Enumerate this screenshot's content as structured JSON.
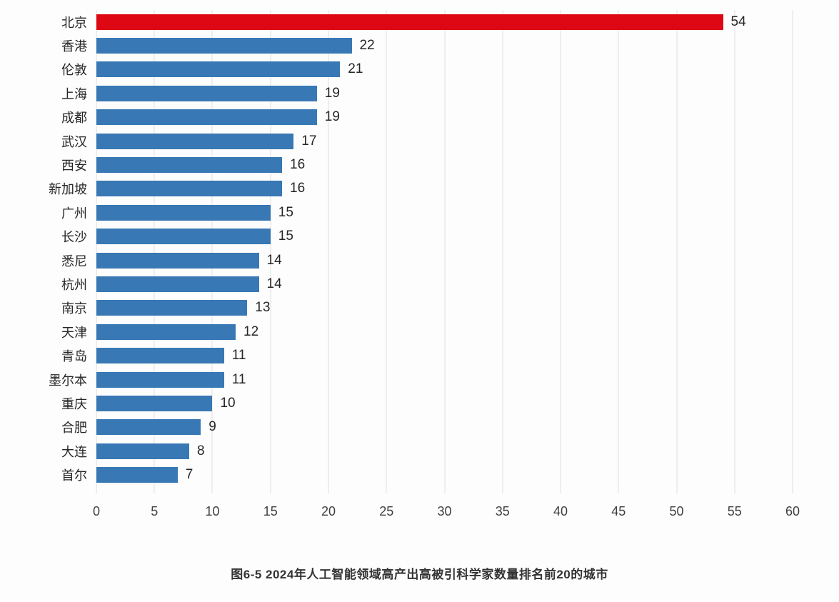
{
  "chart_data": {
    "type": "bar",
    "orientation": "horizontal",
    "caption": "图6-5 2024年人工智能领域高产出高被引科学家数量排名前20的城市",
    "categories": [
      "北京",
      "香港",
      "伦敦",
      "上海",
      "成都",
      "武汉",
      "西安",
      "新加坡",
      "广州",
      "长沙",
      "悉尼",
      "杭州",
      "南京",
      "天津",
      "青岛",
      "墨尔本",
      "重庆",
      "合肥",
      "大连",
      "首尔"
    ],
    "values": [
      54,
      22,
      21,
      19,
      19,
      17,
      16,
      16,
      15,
      15,
      14,
      14,
      13,
      12,
      11,
      11,
      10,
      9,
      8,
      7
    ],
    "highlight_index": 0,
    "colors": {
      "bar": "#3878b4",
      "highlight": "#dd0813",
      "grid": "#dedede",
      "label_text": "#262626",
      "axis_text": "#3f3f3f"
    },
    "xlim": [
      0,
      60
    ],
    "x_ticks": [
      0,
      5,
      10,
      15,
      20,
      25,
      30,
      35,
      40,
      45,
      50,
      55,
      60
    ],
    "grid": true,
    "value_labels": true,
    "legend_position": "none"
  }
}
